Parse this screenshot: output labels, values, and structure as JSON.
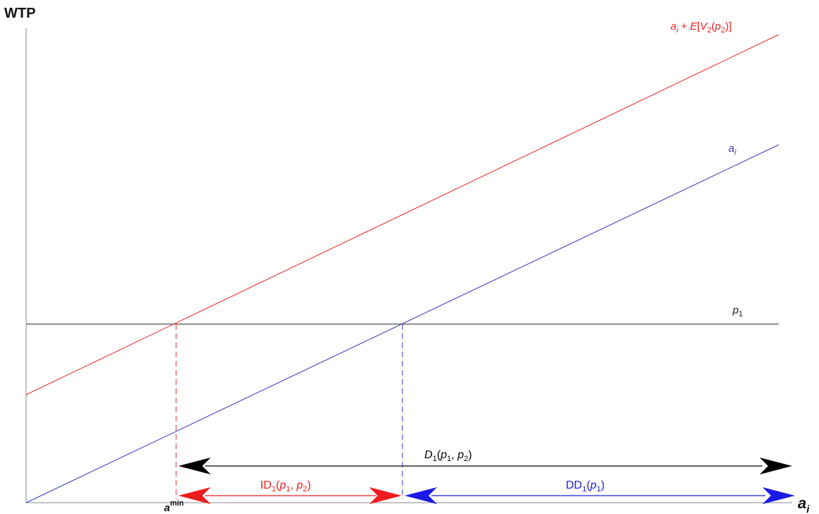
{
  "axes": {
    "y_label": "WTP",
    "x_label": "a",
    "x_label_sub": "i"
  },
  "lines": {
    "upper": {
      "color": "#ee2020",
      "a": "a",
      "a_sub": "i",
      "plus": "+",
      "E": "E",
      "lb": "[",
      "V": "V",
      "V_sub": "2",
      "lp": "(",
      "p": "p",
      "p_sub": "2",
      "rp": ")",
      "rb": "]"
    },
    "lower": {
      "color": "#3434c4",
      "a": "a",
      "a_sub": "i"
    },
    "price": {
      "color": "#222222",
      "p": "p",
      "p_sub": "1"
    }
  },
  "markers": {
    "amin_base": "a",
    "amin_sup": "min"
  },
  "arrows": {
    "D": {
      "color": "#000000",
      "name": "D",
      "sub": "1",
      "lp": "(",
      "p1": "p",
      "p1_sub": "1",
      "comma": ", ",
      "p2": "p",
      "p2_sub": "2",
      "rp": ")"
    },
    "ID": {
      "color": "#ee1c1c",
      "name": "ID",
      "sub": "1",
      "lp": "(",
      "p1": "p",
      "p1_sub": "1",
      "comma": ", ",
      "p2": "p",
      "p2_sub": "2",
      "rp": ")"
    },
    "DD": {
      "color": "#1a1ae6",
      "name": "DD",
      "sub": "1",
      "lp": "(",
      "p1": "p",
      "p1_sub": "1",
      "rp": ")"
    }
  }
}
